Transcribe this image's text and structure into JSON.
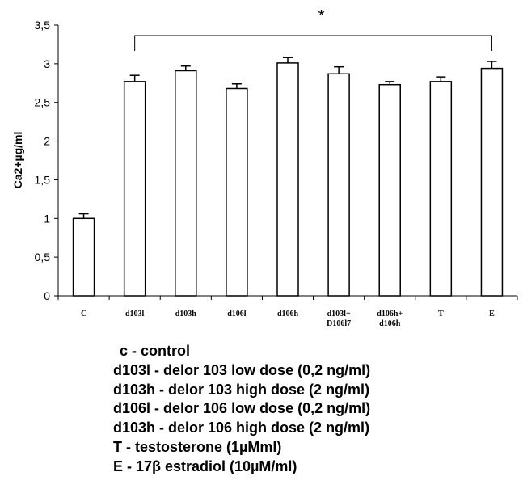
{
  "chart_data": {
    "type": "bar",
    "ylabel": "Ca2+µg/ml",
    "xlabel": "",
    "ylim": [
      0,
      3.5
    ],
    "yticks": [
      "0",
      "0,5",
      "1",
      "1,5",
      "2",
      "2,5",
      "3",
      "3,5"
    ],
    "categories": [
      [
        "C"
      ],
      [
        "d103l"
      ],
      [
        "d103h"
      ],
      [
        "d106l"
      ],
      [
        "d106h"
      ],
      [
        "d103l+",
        "D106l7"
      ],
      [
        "d106h+",
        "d106h"
      ],
      [
        "T"
      ],
      [
        "E"
      ]
    ],
    "values": [
      1.0,
      2.77,
      2.91,
      2.68,
      3.01,
      2.87,
      2.73,
      2.77,
      2.94
    ],
    "errors": [
      0.06,
      0.08,
      0.06,
      0.06,
      0.07,
      0.09,
      0.04,
      0.06,
      0.09
    ],
    "grid": false,
    "bar_fill": "#ffffff",
    "bar_stroke": "#000000",
    "significance": {
      "label": "*",
      "from_category": 1,
      "to_category": 8
    }
  },
  "legend": [
    "c - control",
    "d103l - delor 103 low dose (0,2 ng/ml)",
    "d103h - delor 103 high dose (2 ng/ml)",
    "d106l - delor 106 low dose (0,2 ng/ml)",
    "d103h - delor 106 high dose (2 ng/ml)",
    "T - testosterone (1µMml)",
    "E - 17β estradiol (10µM/ml)"
  ]
}
